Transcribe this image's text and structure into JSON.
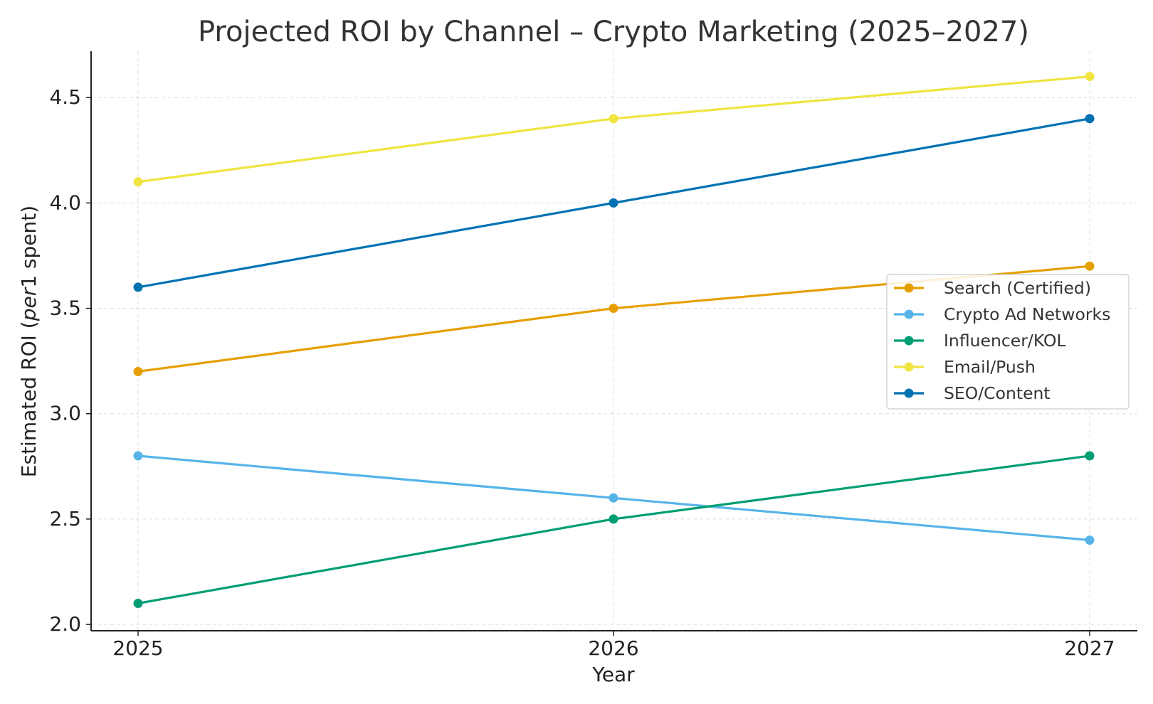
{
  "chart_data": {
    "type": "line",
    "title": "Projected ROI by Channel – Crypto Marketing (2025–2027)",
    "xlabel": "Year",
    "ylabel_parts": [
      "Estimated ROI (",
      "per",
      "1 spent)"
    ],
    "x": [
      "2025",
      "2026",
      "2027"
    ],
    "yticks": [
      "2.0",
      "2.5",
      "3.0",
      "3.5",
      "4.0",
      "4.5"
    ],
    "ytick_values": [
      2.0,
      2.5,
      3.0,
      3.5,
      4.0,
      4.5
    ],
    "ylim": [
      1.97,
      4.72
    ],
    "grid": true,
    "legend_position": "center-right",
    "series": [
      {
        "name": "Search (Certified)",
        "color": "#E69F00",
        "values": [
          3.2,
          3.5,
          3.7
        ]
      },
      {
        "name": "Crypto Ad Networks",
        "color": "#56B4E9",
        "values": [
          2.8,
          2.6,
          2.4
        ]
      },
      {
        "name": "Influencer/KOL",
        "color": "#009E73",
        "values": [
          2.1,
          2.5,
          2.8
        ]
      },
      {
        "name": "Email/Push",
        "color": "#F0E442",
        "values": [
          4.1,
          4.4,
          4.6
        ]
      },
      {
        "name": "SEO/Content",
        "color": "#0072B2",
        "values": [
          3.6,
          4.0,
          4.4
        ]
      }
    ]
  }
}
